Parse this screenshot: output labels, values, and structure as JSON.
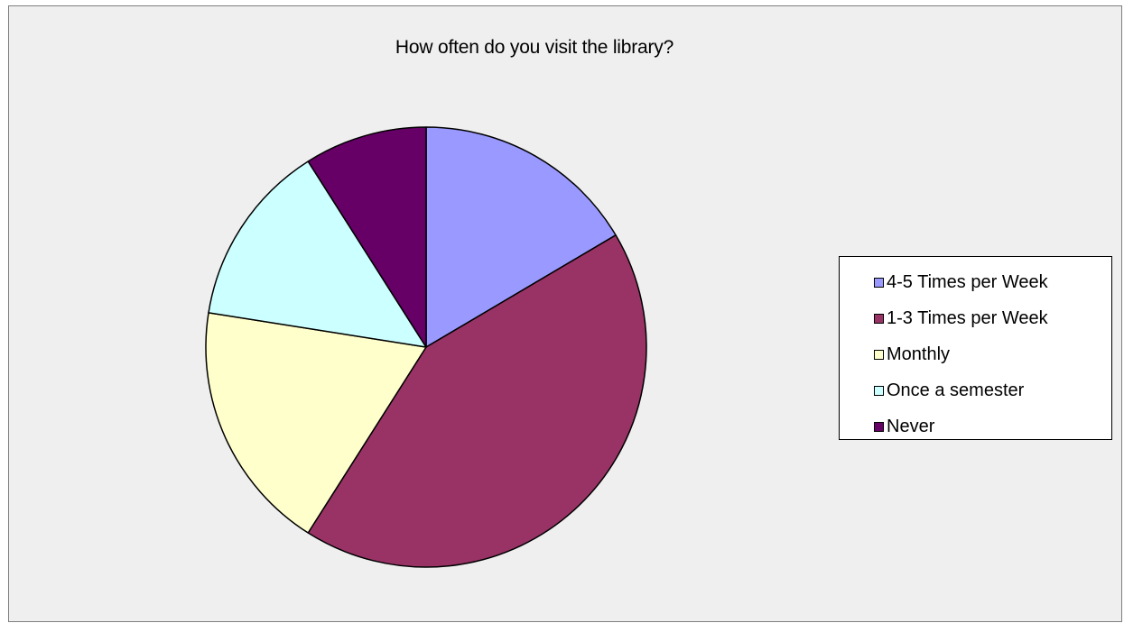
{
  "chart_data": {
    "type": "pie",
    "title": "How often do you visit the library?",
    "categories": [
      "4-5 Times per Week",
      "1-3 Times per Week",
      "Monthly",
      "Once a semester",
      "Never"
    ],
    "values": [
      16.5,
      42.5,
      18.5,
      13.5,
      9
    ],
    "colors": [
      "#9999ff",
      "#993366",
      "#ffffcc",
      "#ccffff",
      "#660066"
    ],
    "start_angle": "top, clockwise",
    "legend_position": "right"
  }
}
